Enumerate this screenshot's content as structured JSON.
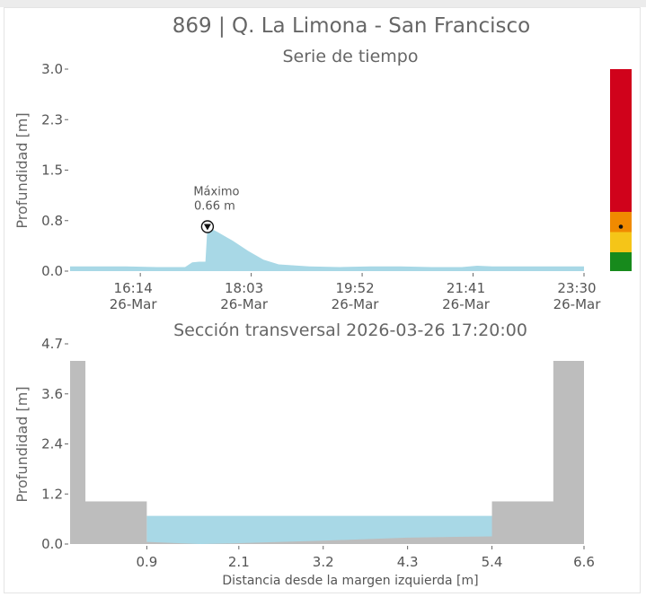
{
  "title": "869 | Q. La Limona - San Francisco",
  "colors": {
    "water": "#a8d8e6",
    "ground": "#bdbdbd",
    "text": "#666666",
    "alert_red": "#d0021b",
    "alert_orange": "#f08a00",
    "alert_yellow": "#f5c518",
    "alert_green": "#178a1c"
  },
  "chart_data": [
    {
      "type": "area",
      "title": "Serie de tiempo",
      "ylabel": "Profundidad [m]",
      "xlabel": "",
      "ylim": [
        0.0,
        3.0
      ],
      "yticks": [
        "0.0",
        "0.8",
        "1.5",
        "2.3",
        "3.0"
      ],
      "xticks": [
        {
          "time": "16:14",
          "date": "26-Mar"
        },
        {
          "time": "18:03",
          "date": "26-Mar"
        },
        {
          "time": "19:52",
          "date": "26-Mar"
        },
        {
          "time": "21:41",
          "date": "26-Mar"
        },
        {
          "time": "23:30",
          "date": "26-Mar"
        }
      ],
      "annotation": {
        "label": "Máximo",
        "value": "0.66 m",
        "time": "17:20",
        "depth": 0.66
      },
      "series": [
        {
          "x": [
            "15:05",
            "15:30",
            "16:00",
            "16:30",
            "16:58",
            "17:05",
            "17:12",
            "17:18",
            "17:20",
            "17:30",
            "17:45",
            "18:00",
            "18:15",
            "18:30",
            "19:00",
            "19:30",
            "20:00",
            "20:30",
            "21:00",
            "21:30",
            "21:45",
            "22:00",
            "22:30",
            "23:00",
            "23:30"
          ],
          "y": [
            0.07,
            0.07,
            0.07,
            0.06,
            0.06,
            0.13,
            0.14,
            0.14,
            0.66,
            0.58,
            0.45,
            0.3,
            0.17,
            0.1,
            0.07,
            0.06,
            0.07,
            0.07,
            0.06,
            0.06,
            0.08,
            0.07,
            0.07,
            0.07,
            0.07
          ]
        }
      ],
      "alert_levels": [
        {
          "color": "#d0021b",
          "from": 0.88,
          "to": 3.0
        },
        {
          "color": "#f08a00",
          "from": 0.58,
          "to": 0.88
        },
        {
          "color": "#f5c518",
          "from": 0.28,
          "to": 0.58
        },
        {
          "color": "#178a1c",
          "from": 0.0,
          "to": 0.28
        }
      ],
      "current_level": 0.66
    },
    {
      "type": "area",
      "title": "Sección transversal 2026-03-26 17:20:00",
      "ylabel": "Profundidad [m]",
      "xlabel": "Distancia desde la margen izquierda [m]",
      "ylim": [
        0.0,
        4.7
      ],
      "xlim": [
        -0.1,
        6.6
      ],
      "yticks": [
        "0.0",
        "1.2",
        "2.4",
        "3.6",
        "4.7"
      ],
      "xticks": [
        "0.9",
        "2.1",
        "3.2",
        "4.3",
        "5.4",
        "6.6"
      ],
      "water_level": 0.66,
      "channel_profile": {
        "x": [
          -0.1,
          0.1,
          0.1,
          0.9,
          0.9,
          1.6,
          2.1,
          3.2,
          4.3,
          5.4,
          5.4,
          6.2,
          6.2,
          6.6
        ],
        "y": [
          4.3,
          4.3,
          1.0,
          1.0,
          0.05,
          0.0,
          0.02,
          0.08,
          0.15,
          0.18,
          1.0,
          1.0,
          4.3,
          4.3
        ]
      }
    }
  ]
}
